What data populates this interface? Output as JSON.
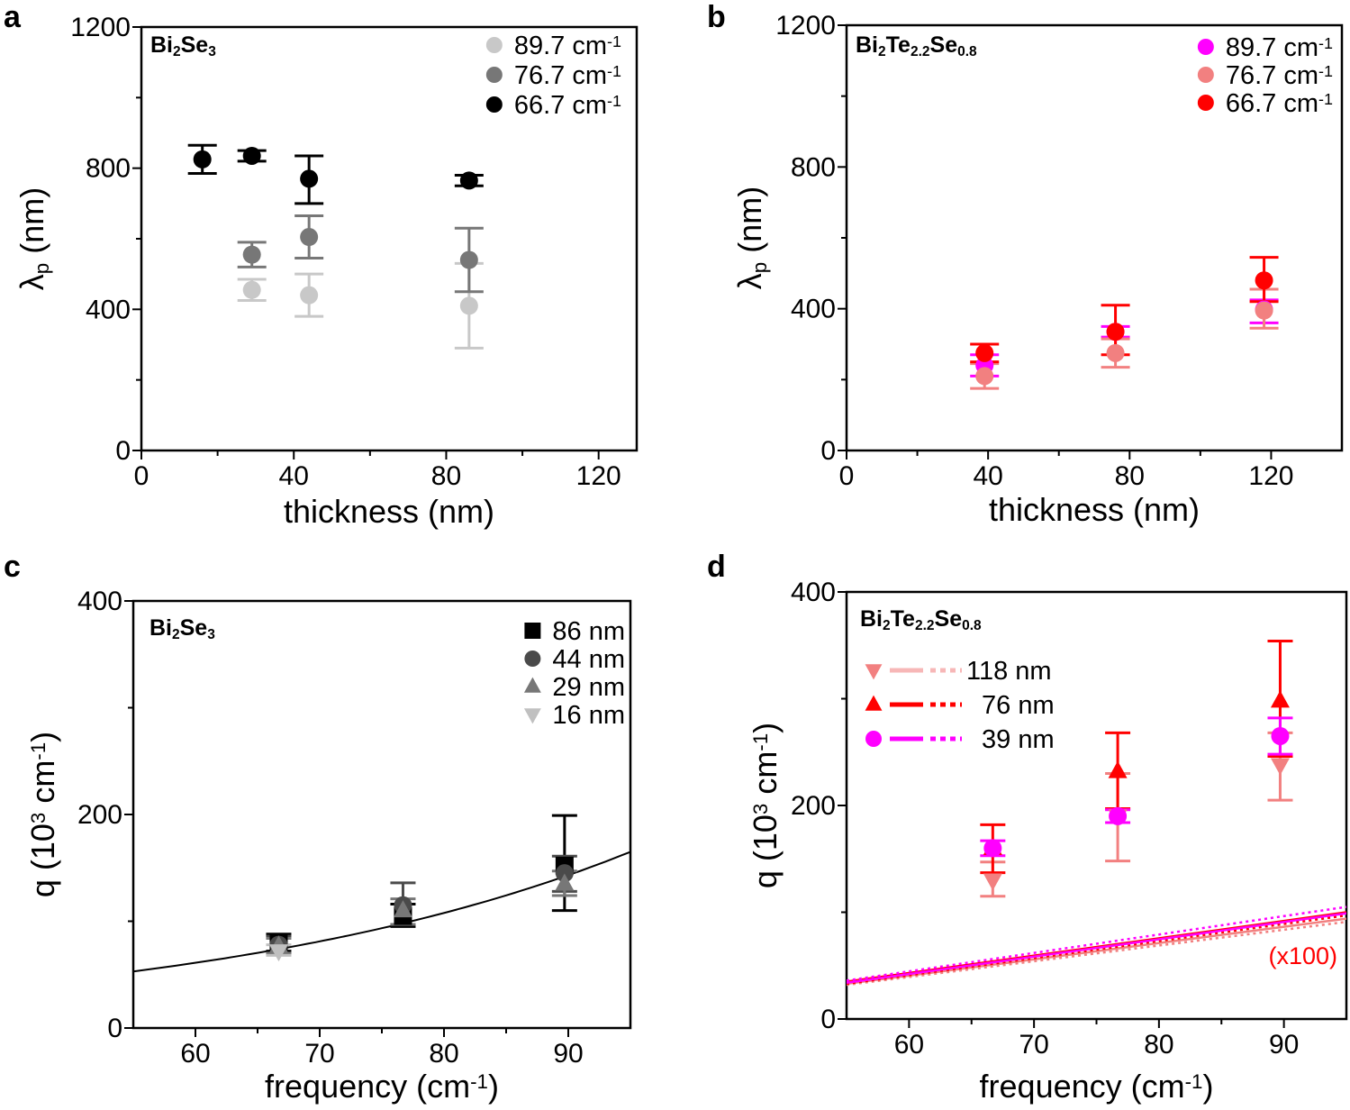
{
  "chart_data": [
    {
      "panel": "a",
      "type": "scatter",
      "title": "Bi2Se3",
      "title_parts": [
        "Bi",
        "2",
        "Se",
        "3"
      ],
      "xlabel": "thickness (nm)",
      "ylabel": "λp (nm)",
      "ylabel_parts": [
        "λ",
        "p",
        " (nm)"
      ],
      "xlim": [
        0,
        130
      ],
      "ylim": [
        0,
        1200
      ],
      "xticks": [
        0,
        40,
        80,
        120
      ],
      "yticks": [
        0,
        400,
        800,
        1200
      ],
      "xminor": [
        20,
        60,
        100
      ],
      "yminor": [
        200,
        600,
        1000
      ],
      "legend_position": "top-right",
      "series": [
        {
          "name": "89.7 cm-1",
          "name_parts": [
            "89.7 cm",
            "-1"
          ],
          "color": "#c8c8c8",
          "marker": "circle",
          "points": [
            {
              "x": 29,
              "y": 455,
              "lo": 425,
              "hi": 485
            },
            {
              "x": 44,
              "y": 440,
              "lo": 380,
              "hi": 500
            },
            {
              "x": 86,
              "y": 410,
              "lo": 290,
              "hi": 530
            }
          ]
        },
        {
          "name": "76.7 cm-1",
          "name_parts": [
            "76.7 cm",
            "-1"
          ],
          "color": "#777777",
          "marker": "circle",
          "points": [
            {
              "x": 29,
              "y": 555,
              "lo": 520,
              "hi": 590
            },
            {
              "x": 44,
              "y": 605,
              "lo": 545,
              "hi": 665
            },
            {
              "x": 86,
              "y": 540,
              "lo": 450,
              "hi": 630
            }
          ]
        },
        {
          "name": "66.7 cm-1",
          "name_parts": [
            "66.7 cm",
            "-1"
          ],
          "color": "#000000",
          "marker": "circle",
          "points": [
            {
              "x": 16,
              "y": 825,
              "lo": 785,
              "hi": 865
            },
            {
              "x": 29,
              "y": 835,
              "lo": 820,
              "hi": 850
            },
            {
              "x": 44,
              "y": 770,
              "lo": 700,
              "hi": 835
            },
            {
              "x": 86,
              "y": 765,
              "lo": 750,
              "hi": 780
            }
          ]
        }
      ]
    },
    {
      "panel": "b",
      "type": "scatter",
      "title": "Bi2Te2.2Se0.8",
      "title_parts": [
        "Bi",
        "2",
        "Te",
        "2.2",
        "Se",
        "0.8"
      ],
      "xlabel": "thickness (nm)",
      "ylabel": "λp (nm)",
      "ylabel_parts": [
        "λ",
        "p",
        " (nm)"
      ],
      "xlim": [
        0,
        140
      ],
      "ylim": [
        0,
        1200
      ],
      "xticks": [
        0,
        40,
        80,
        120
      ],
      "yticks": [
        0,
        400,
        800,
        1200
      ],
      "xminor": [
        20,
        60,
        100
      ],
      "yminor": [
        200,
        600,
        1000
      ],
      "legend_position": "top-right",
      "series": [
        {
          "name": "89.7 cm-1",
          "name_parts": [
            "89.7 cm",
            "-1"
          ],
          "color": "#ff00ff",
          "marker": "circle",
          "points": [
            {
              "x": 39,
              "y": 240,
              "lo": 210,
              "hi": 270
            },
            {
              "x": 76,
              "y": 335,
              "lo": 320,
              "hi": 350
            },
            {
              "x": 118,
              "y": 398,
              "lo": 360,
              "hi": 425
            }
          ]
        },
        {
          "name": "76.7 cm-1",
          "name_parts": [
            "76.7 cm",
            "-1"
          ],
          "color": "#f28080",
          "marker": "circle",
          "points": [
            {
              "x": 39,
              "y": 210,
              "lo": 175,
              "hi": 245
            },
            {
              "x": 76,
              "y": 275,
              "lo": 235,
              "hi": 315
            },
            {
              "x": 118,
              "y": 395,
              "lo": 345,
              "hi": 455
            }
          ]
        },
        {
          "name": "66.7 cm-1",
          "name_parts": [
            "66.7 cm",
            "-1"
          ],
          "color": "#ff0000",
          "marker": "circle",
          "points": [
            {
              "x": 39,
              "y": 275,
              "lo": 250,
              "hi": 300
            },
            {
              "x": 76,
              "y": 335,
              "lo": 270,
              "hi": 410
            },
            {
              "x": 118,
              "y": 480,
              "lo": 420,
              "hi": 545
            }
          ]
        }
      ]
    },
    {
      "panel": "c",
      "type": "scatter",
      "title": "Bi2Se3",
      "title_parts": [
        "Bi",
        "2",
        "Se",
        "3"
      ],
      "xlabel": "frequency  (cm-1)",
      "xlabel_parts": [
        "frequency  (cm",
        "-1",
        ")"
      ],
      "ylabel": "q (10^3 cm-1)",
      "ylabel_parts": [
        "q (10",
        "3",
        " cm",
        "-1",
        ")"
      ],
      "xlim": [
        55,
        95
      ],
      "ylim": [
        0,
        400
      ],
      "xticks": [
        60,
        70,
        80,
        90
      ],
      "yticks": [
        0,
        200,
        400
      ],
      "xminor": [
        65,
        75,
        85
      ],
      "yminor": [
        100,
        300
      ],
      "legend_position": "top-right",
      "series": [
        {
          "name": "86 nm",
          "color": "#000000",
          "marker": "square",
          "points": [
            {
              "x": 66.7,
              "y": 80,
              "lo": 72,
              "hi": 88
            },
            {
              "x": 76.7,
              "y": 105,
              "lo": 95,
              "hi": 116
            },
            {
              "x": 89.7,
              "y": 152,
              "lo": 110,
              "hi": 199
            }
          ]
        },
        {
          "name": "44 nm",
          "color": "#4a4a4a",
          "marker": "circle",
          "points": [
            {
              "x": 66.7,
              "y": 78,
              "lo": 70,
              "hi": 86
            },
            {
              "x": 76.7,
              "y": 115,
              "lo": 97,
              "hi": 136
            },
            {
              "x": 89.7,
              "y": 145,
              "lo": 128,
              "hi": 161
            }
          ]
        },
        {
          "name": "29 nm",
          "color": "#777777",
          "marker": "triangle-up",
          "points": [
            {
              "x": 66.7,
              "y": 77,
              "lo": 70,
              "hi": 84
            },
            {
              "x": 76.7,
              "y": 110,
              "lo": 97,
              "hi": 121
            },
            {
              "x": 89.7,
              "y": 135,
              "lo": 124,
              "hi": 147
            }
          ]
        },
        {
          "name": "16 nm",
          "color": "#c0c0c0",
          "marker": "triangle-down",
          "points": [
            {
              "x": 66.7,
              "y": 72,
              "lo": 68,
              "hi": 78
            }
          ]
        }
      ],
      "fit_curve": {
        "color": "#000000",
        "style": "solid",
        "x": [
          55,
          95
        ],
        "y": [
          53,
          165
        ]
      }
    },
    {
      "panel": "d",
      "type": "scatter",
      "title": "Bi2Te2.2Se0.8",
      "title_parts": [
        "Bi",
        "2",
        "Te",
        "2.2",
        "Se",
        "0.8"
      ],
      "xlabel": "frequency  (cm-1)",
      "xlabel_parts": [
        "frequency  (cm",
        "-1",
        ")"
      ],
      "ylabel": "q (10^3 cm-1)",
      "ylabel_parts": [
        "q (10",
        "3",
        " cm",
        "-1",
        ")"
      ],
      "xlim": [
        55,
        95
      ],
      "ylim": [
        0,
        400
      ],
      "xticks": [
        60,
        70,
        80,
        90
      ],
      "yticks": [
        0,
        200,
        400
      ],
      "xminor": [
        65,
        75,
        85
      ],
      "yminor": [
        100,
        300
      ],
      "legend_position": "top-left",
      "annotation": "(x100)",
      "series": [
        {
          "name": "118 nm",
          "color": "#f28080",
          "legend_color": "#f7b7b7",
          "marker": "triangle-down",
          "points": [
            {
              "x": 66.7,
              "y": 130,
              "lo": 115,
              "hi": 147
            },
            {
              "x": 76.7,
              "y": 190,
              "lo": 148,
              "hi": 230
            },
            {
              "x": 89.7,
              "y": 238,
              "lo": 205,
              "hi": 268
            }
          ],
          "lines": [
            {
              "style": "solid",
              "x": [
                55,
                95
              ],
              "y": [
                33,
                94
              ]
            },
            {
              "style": "dotted",
              "x": [
                55,
                95
              ],
              "y": [
                32,
                91
              ]
            }
          ]
        },
        {
          "name": "76 nm",
          "color": "#ff0000",
          "marker": "triangle-up",
          "points": [
            {
              "x": 66.7,
              "y": 160,
              "lo": 137,
              "hi": 182
            },
            {
              "x": 76.7,
              "y": 232,
              "lo": 197,
              "hi": 268
            },
            {
              "x": 89.7,
              "y": 298,
              "lo": 246,
              "hi": 354
            }
          ],
          "lines": [
            {
              "style": "solid",
              "x": [
                55,
                95
              ],
              "y": [
                35,
                100
              ]
            },
            {
              "style": "dotted",
              "x": [
                55,
                95
              ],
              "y": [
                33,
                97
              ]
            }
          ]
        },
        {
          "name": "39 nm",
          "color": "#ff00ff",
          "marker": "circle",
          "points": [
            {
              "x": 66.7,
              "y": 160,
              "lo": 153,
              "hi": 167
            },
            {
              "x": 76.7,
              "y": 190,
              "lo": 184,
              "hi": 196
            },
            {
              "x": 89.7,
              "y": 265,
              "lo": 248,
              "hi": 282
            }
          ],
          "lines": [
            {
              "style": "solid",
              "x": [
                55,
                95
              ],
              "y": [
                34,
                99
              ]
            },
            {
              "style": "dotted",
              "x": [
                55,
                95
              ],
              "y": [
                36,
                105
              ]
            }
          ]
        }
      ]
    }
  ]
}
